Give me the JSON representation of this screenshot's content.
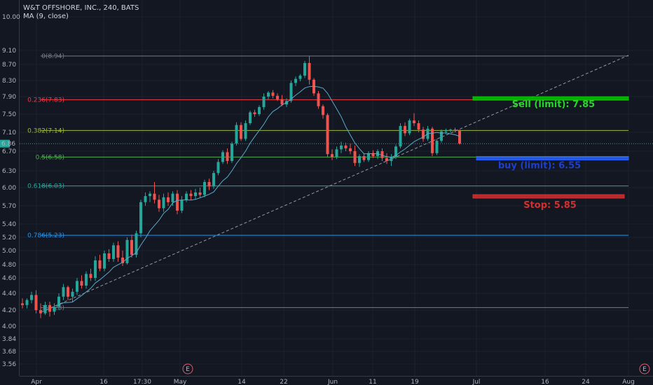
{
  "chart_data": {
    "type": "candlestick",
    "title": "W&T OFFSHORE, INC., 240, BATS",
    "subtitle": "MA (9, close)",
    "last_price_label": "6.86",
    "y_ticks": [
      "10.00",
      "9.10",
      "8.70",
      "8.30",
      "7.90",
      "7.50",
      "7.10",
      "6.70",
      "6.30",
      "6.00",
      "5.70",
      "5.40",
      "5.20",
      "5.00",
      "4.80",
      "4.60",
      "4.40",
      "4.20",
      "4.00",
      "3.84",
      "3.68",
      "3.56"
    ],
    "x_ticks": [
      "Apr",
      "16",
      "17:30",
      "May",
      "14",
      "22",
      "Jun",
      "11",
      "19",
      "Jul",
      "16",
      "24",
      "Aug"
    ],
    "earnings_marker": "E",
    "ylim": [
      3.5,
      10.3
    ],
    "fib_levels": [
      {
        "label": "0(8.94)",
        "value": 8.94,
        "color": "#787b86"
      },
      {
        "label": "0.236(7.83)",
        "value": 7.83,
        "color": "#f23645"
      },
      {
        "label": "0.382(7.14)",
        "value": 7.14,
        "color": "#9fb83a"
      },
      {
        "label": "0.5(6.58)",
        "value": 6.58,
        "color": "#4caf50"
      },
      {
        "label": "0.618(6.03)",
        "value": 6.03,
        "color": "#26a69a"
      },
      {
        "label": "0.786(5.23)",
        "value": 5.23,
        "color": "#2196f3"
      },
      {
        "label": "1(4.23)",
        "value": 4.23,
        "color": "#787b86"
      }
    ],
    "orders": [
      {
        "label": "Sell (limit): 7.85",
        "value": 7.85,
        "color": "#00c800",
        "text_color": "#2bd42b"
      },
      {
        "label": "buy (limit): 6.55",
        "value": 6.55,
        "color": "#2962ff",
        "text_color": "#1e3fcc"
      },
      {
        "label": "Stop: 5.85",
        "value": 5.85,
        "color": "#d32f2f",
        "text_color": "#d32f2f"
      }
    ],
    "candles": [
      [
        4.28,
        4.34,
        4.22,
        4.26
      ],
      [
        4.26,
        4.34,
        4.22,
        4.32
      ],
      [
        4.32,
        4.42,
        4.28,
        4.38
      ],
      [
        4.38,
        4.44,
        4.16,
        4.2
      ],
      [
        4.2,
        4.28,
        4.1,
        4.16
      ],
      [
        4.16,
        4.3,
        4.14,
        4.26
      ],
      [
        4.26,
        4.3,
        4.12,
        4.18
      ],
      [
        4.18,
        4.28,
        4.14,
        4.24
      ],
      [
        4.24,
        4.4,
        4.2,
        4.36
      ],
      [
        4.36,
        4.52,
        4.32,
        4.48
      ],
      [
        4.48,
        4.5,
        4.32,
        4.36
      ],
      [
        4.36,
        4.46,
        4.3,
        4.42
      ],
      [
        4.42,
        4.6,
        4.38,
        4.56
      ],
      [
        4.56,
        4.64,
        4.46,
        4.5
      ],
      [
        4.5,
        4.7,
        4.46,
        4.66
      ],
      [
        4.66,
        4.74,
        4.56,
        4.6
      ],
      [
        4.6,
        4.92,
        4.56,
        4.86
      ],
      [
        4.86,
        4.94,
        4.7,
        4.74
      ],
      [
        4.74,
        5.0,
        4.7,
        4.96
      ],
      [
        4.96,
        5.02,
        4.84,
        4.88
      ],
      [
        4.88,
        5.12,
        4.84,
        5.08
      ],
      [
        5.08,
        5.14,
        4.84,
        4.9
      ],
      [
        4.9,
        5.0,
        4.78,
        4.82
      ],
      [
        4.82,
        5.2,
        4.8,
        5.16
      ],
      [
        5.16,
        5.24,
        4.9,
        4.94
      ],
      [
        4.94,
        5.3,
        4.9,
        5.26
      ],
      [
        5.26,
        5.8,
        5.2,
        5.76
      ],
      [
        5.76,
        5.92,
        5.7,
        5.86
      ],
      [
        5.86,
        5.94,
        5.76,
        5.9
      ],
      [
        5.9,
        6.1,
        5.74,
        5.8
      ],
      [
        5.8,
        5.88,
        5.6,
        5.66
      ],
      [
        5.66,
        5.9,
        5.6,
        5.84
      ],
      [
        5.84,
        5.92,
        5.7,
        5.76
      ],
      [
        5.76,
        5.94,
        5.7,
        5.9
      ],
      [
        5.9,
        5.96,
        5.56,
        5.62
      ],
      [
        5.62,
        5.86,
        5.58,
        5.8
      ],
      [
        5.8,
        5.94,
        5.76,
        5.9
      ],
      [
        5.9,
        5.96,
        5.8,
        5.86
      ],
      [
        5.86,
        5.98,
        5.8,
        5.92
      ],
      [
        5.92,
        6.0,
        5.84,
        5.88
      ],
      [
        5.88,
        6.14,
        5.84,
        6.1
      ],
      [
        6.1,
        6.16,
        5.96,
        6.02
      ],
      [
        6.02,
        6.3,
        5.98,
        6.26
      ],
      [
        6.26,
        6.54,
        6.22,
        6.48
      ],
      [
        6.48,
        6.72,
        6.44,
        6.68
      ],
      [
        6.68,
        6.76,
        6.44,
        6.5
      ],
      [
        6.5,
        6.9,
        6.46,
        6.86
      ],
      [
        6.86,
        7.32,
        6.82,
        7.26
      ],
      [
        7.26,
        7.32,
        6.92,
        6.96
      ],
      [
        6.96,
        7.36,
        6.92,
        7.3
      ],
      [
        7.3,
        7.58,
        7.26,
        7.54
      ],
      [
        7.54,
        7.6,
        7.44,
        7.5
      ],
      [
        7.5,
        7.7,
        7.46,
        7.66
      ],
      [
        7.66,
        7.98,
        7.6,
        7.9
      ],
      [
        7.9,
        8.04,
        7.84,
        8.0
      ],
      [
        8.0,
        8.06,
        7.86,
        7.92
      ],
      [
        7.92,
        7.98,
        7.8,
        7.84
      ],
      [
        7.84,
        7.94,
        7.68,
        7.72
      ],
      [
        7.72,
        7.86,
        7.66,
        7.8
      ],
      [
        7.8,
        8.3,
        7.76,
        8.24
      ],
      [
        8.24,
        8.4,
        8.16,
        8.34
      ],
      [
        8.34,
        8.46,
        8.28,
        8.42
      ],
      [
        8.42,
        8.8,
        8.36,
        8.74
      ],
      [
        8.74,
        8.94,
        8.2,
        8.32
      ],
      [
        8.32,
        8.36,
        7.92,
        7.98
      ],
      [
        7.98,
        8.04,
        7.62,
        7.68
      ],
      [
        7.68,
        7.72,
        7.4,
        7.48
      ],
      [
        7.48,
        7.52,
        6.58,
        6.64
      ],
      [
        6.64,
        6.74,
        6.52,
        6.58
      ],
      [
        6.58,
        6.8,
        6.54,
        6.74
      ],
      [
        6.74,
        6.9,
        6.66,
        6.82
      ],
      [
        6.82,
        6.88,
        6.7,
        6.76
      ],
      [
        6.76,
        6.86,
        6.64,
        6.7
      ],
      [
        6.7,
        6.82,
        6.4,
        6.46
      ],
      [
        6.46,
        6.64,
        6.38,
        6.6
      ],
      [
        6.6,
        6.66,
        6.48,
        6.52
      ],
      [
        6.52,
        6.7,
        6.48,
        6.66
      ],
      [
        6.66,
        6.72,
        6.56,
        6.6
      ],
      [
        6.6,
        6.74,
        6.54,
        6.7
      ],
      [
        6.7,
        6.76,
        6.5,
        6.56
      ],
      [
        6.56,
        6.66,
        6.44,
        6.5
      ],
      [
        6.5,
        6.64,
        6.4,
        6.58
      ],
      [
        6.58,
        6.84,
        6.54,
        6.8
      ],
      [
        6.8,
        7.3,
        6.76,
        7.24
      ],
      [
        7.24,
        7.32,
        7.02,
        7.08
      ],
      [
        7.08,
        7.4,
        7.04,
        7.36
      ],
      [
        7.36,
        7.52,
        7.24,
        7.3
      ],
      [
        7.3,
        7.36,
        7.1,
        7.16
      ],
      [
        7.16,
        7.22,
        6.9,
        6.96
      ],
      [
        6.96,
        7.24,
        6.92,
        7.18
      ],
      [
        7.18,
        7.22,
        6.6,
        6.66
      ],
      [
        6.66,
        6.96,
        6.62,
        6.92
      ],
      [
        6.92,
        7.16,
        6.88,
        7.12
      ],
      [
        7.12,
        7.18,
        7.06,
        7.14
      ],
      [
        7.14,
        7.18,
        7.1,
        7.16
      ],
      [
        7.16,
        7.2,
        7.1,
        7.14
      ],
      [
        7.14,
        7.16,
        6.84,
        6.86
      ]
    ]
  }
}
